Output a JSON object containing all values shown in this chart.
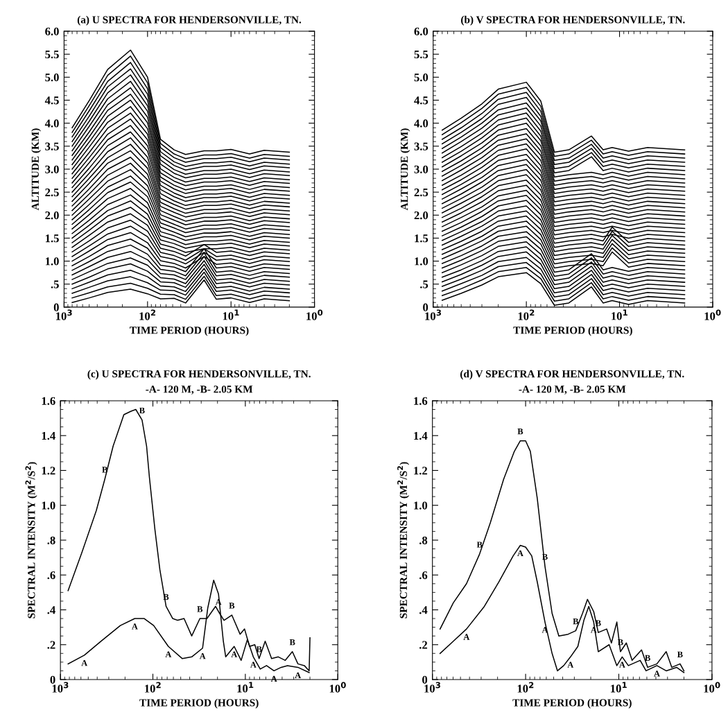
{
  "chart_data": [
    {
      "type": "line",
      "title": "(a) U SPECTRA FOR HENDERSONVILLE, TN.",
      "xlabel": "TIME PERIOD (HOURS)",
      "ylabel": "ALTITUDE (KM)",
      "log": "x",
      "xlim": [
        1000,
        1
      ],
      "ylim": [
        0,
        6.0
      ],
      "xticks": [
        {
          "value": 1000,
          "label": "10$^{3}$"
        },
        {
          "value": 100,
          "label": "10$^{2}$"
        },
        {
          "value": 10,
          "label": "10$^{1}$"
        },
        {
          "value": 1,
          "label": "10$^{0}$"
        }
      ],
      "yticks": [
        0,
        {
          "value": 0.5,
          "label": ".5"
        },
        {
          "value": 1,
          "label": "1.0"
        },
        1.5,
        {
          "value": 2,
          "label": "2.0"
        },
        2.5,
        {
          "value": 3,
          "label": "3.0"
        },
        3.5,
        {
          "value": 4,
          "label": "4.0"
        },
        4.5,
        {
          "value": 5,
          "label": "5.0"
        },
        5.5,
        {
          "value": 6,
          "label": "6.0"
        }
      ],
      "x": [
        800,
        500,
        300,
        160,
        100,
        70,
        48,
        35,
        21,
        15,
        10,
        6,
        4,
        2
      ],
      "series": [
        {
          "color": "#000000",
          "values": [
            0.1,
            0.2,
            0.32,
            0.39,
            0.29,
            0.18,
            0.19,
            0.09,
            0.59,
            0.17,
            0.2,
            0.1,
            0.18,
            0.14
          ]
        },
        {
          "color": "#000000",
          "values": [
            0.2,
            0.31,
            0.44,
            0.52,
            0.41,
            0.28,
            0.27,
            0.17,
            0.67,
            0.25,
            0.28,
            0.18,
            0.26,
            0.22
          ]
        },
        {
          "color": "#000000",
          "values": [
            0.3,
            0.43,
            0.57,
            0.66,
            0.53,
            0.37,
            0.36,
            0.26,
            0.76,
            0.34,
            0.37,
            0.27,
            0.35,
            0.31
          ]
        },
        {
          "color": "#000000",
          "values": [
            0.4,
            0.54,
            0.7,
            0.8,
            0.66,
            0.46,
            0.44,
            0.34,
            0.84,
            0.42,
            0.45,
            0.35,
            0.43,
            0.39
          ]
        },
        {
          "color": "#000000",
          "values": [
            0.5,
            0.65,
            0.83,
            0.94,
            0.78,
            0.55,
            0.53,
            0.43,
            0.93,
            0.51,
            0.54,
            0.44,
            0.52,
            0.48
          ]
        },
        {
          "color": "#000000",
          "values": [
            0.6,
            0.77,
            0.95,
            1.07,
            0.91,
            0.64,
            0.61,
            0.51,
            1.01,
            0.59,
            0.62,
            0.52,
            0.6,
            0.56
          ]
        },
        {
          "color": "#000000",
          "values": [
            0.7,
            0.88,
            1.08,
            1.21,
            1.03,
            0.73,
            0.7,
            0.6,
            1.1,
            0.68,
            0.71,
            0.61,
            0.69,
            0.65
          ]
        },
        {
          "color": "#000000",
          "values": [
            0.8,
            0.99,
            1.21,
            1.35,
            1.15,
            0.82,
            0.78,
            0.68,
            1.18,
            0.76,
            0.79,
            0.69,
            0.77,
            0.73
          ]
        },
        {
          "color": "#000000",
          "values": [
            0.9,
            1.1,
            1.34,
            1.48,
            1.28,
            0.91,
            0.87,
            0.77,
            1.27,
            0.85,
            0.88,
            0.78,
            0.86,
            0.82
          ]
        },
        {
          "color": "#000000",
          "values": [
            1.0,
            1.22,
            1.47,
            1.62,
            1.4,
            1.01,
            0.95,
            0.85,
            1.1,
            0.93,
            0.96,
            0.86,
            0.94,
            0.9
          ]
        },
        {
          "color": "#000000",
          "values": [
            1.1,
            1.33,
            1.59,
            1.76,
            1.53,
            1.1,
            1.04,
            0.94,
            1.19,
            1.02,
            1.05,
            0.95,
            1.03,
            0.99
          ]
        },
        {
          "color": "#000000",
          "values": [
            1.2,
            1.44,
            1.72,
            1.89,
            1.65,
            1.19,
            1.12,
            1.02,
            1.27,
            1.1,
            1.13,
            1.03,
            1.11,
            1.07
          ]
        },
        {
          "color": "#000000",
          "values": [
            1.3,
            1.56,
            1.85,
            2.03,
            1.78,
            1.28,
            1.21,
            1.11,
            1.36,
            1.19,
            1.22,
            1.12,
            1.2,
            1.16
          ]
        },
        {
          "color": "#000000",
          "values": [
            1.4,
            1.67,
            1.98,
            2.17,
            1.9,
            1.37,
            1.29,
            1.19,
            1.27,
            1.27,
            1.3,
            1.2,
            1.28,
            1.24
          ]
        },
        {
          "color": "#000000",
          "values": [
            1.5,
            1.78,
            2.1,
            2.31,
            2.02,
            1.46,
            1.38,
            1.28,
            1.36,
            1.36,
            1.39,
            1.29,
            1.37,
            1.33
          ]
        },
        {
          "color": "#000000",
          "values": [
            1.6,
            1.89,
            2.23,
            2.44,
            2.15,
            1.55,
            1.46,
            1.36,
            1.44,
            1.44,
            1.47,
            1.37,
            1.45,
            1.41
          ]
        },
        {
          "color": "#000000",
          "values": [
            1.7,
            2.01,
            2.36,
            2.58,
            2.27,
            1.64,
            1.55,
            1.45,
            1.53,
            1.53,
            1.56,
            1.46,
            1.54,
            1.5
          ]
        },
        {
          "color": "#000000",
          "values": [
            1.8,
            2.12,
            2.49,
            2.72,
            2.4,
            1.74,
            1.63,
            1.53,
            1.61,
            1.61,
            1.64,
            1.54,
            1.62,
            1.58
          ]
        },
        {
          "color": "#000000",
          "values": [
            1.9,
            2.23,
            2.61,
            2.85,
            2.52,
            1.83,
            1.72,
            1.62,
            1.7,
            1.7,
            1.73,
            1.63,
            1.71,
            1.67
          ]
        },
        {
          "color": "#000000",
          "values": [
            2.0,
            2.35,
            2.74,
            2.99,
            2.64,
            1.92,
            1.8,
            1.7,
            1.78,
            1.78,
            1.81,
            1.71,
            1.79,
            1.75
          ]
        },
        {
          "color": "#000000",
          "values": [
            2.1,
            2.46,
            2.87,
            3.13,
            2.77,
            2.01,
            1.89,
            1.79,
            1.87,
            1.87,
            1.9,
            1.8,
            1.88,
            1.84
          ]
        },
        {
          "color": "#000000",
          "values": [
            2.2,
            2.57,
            3.0,
            3.26,
            2.89,
            2.1,
            1.97,
            1.87,
            1.95,
            1.95,
            1.98,
            1.88,
            1.96,
            1.92
          ]
        },
        {
          "color": "#000000",
          "values": [
            2.3,
            2.69,
            3.13,
            3.4,
            3.02,
            2.19,
            2.06,
            1.96,
            2.04,
            2.04,
            2.07,
            1.97,
            2.05,
            2.01
          ]
        },
        {
          "color": "#000000",
          "values": [
            2.4,
            2.8,
            3.25,
            3.54,
            3.14,
            2.28,
            2.14,
            2.04,
            2.12,
            2.12,
            2.15,
            2.05,
            2.13,
            2.09
          ]
        },
        {
          "color": "#000000",
          "values": [
            2.5,
            2.91,
            3.38,
            3.68,
            3.26,
            2.37,
            2.23,
            2.13,
            2.21,
            2.21,
            2.24,
            2.14,
            2.22,
            2.18
          ]
        },
        {
          "color": "#000000",
          "values": [
            2.6,
            3.02,
            3.51,
            3.81,
            3.39,
            2.47,
            2.31,
            2.21,
            2.29,
            2.29,
            2.32,
            2.22,
            2.3,
            2.26
          ]
        },
        {
          "color": "#000000",
          "values": [
            2.7,
            3.14,
            3.64,
            3.95,
            3.51,
            2.56,
            2.4,
            2.3,
            2.38,
            2.38,
            2.41,
            2.31,
            2.39,
            2.35
          ]
        },
        {
          "color": "#000000",
          "values": [
            2.8,
            3.25,
            3.76,
            4.09,
            3.64,
            2.65,
            2.48,
            2.38,
            2.46,
            2.46,
            2.49,
            2.39,
            2.47,
            2.43
          ]
        },
        {
          "color": "#000000",
          "values": [
            2.9,
            3.36,
            3.89,
            4.22,
            3.76,
            2.74,
            2.57,
            2.47,
            2.55,
            2.55,
            2.58,
            2.48,
            2.56,
            2.52
          ]
        },
        {
          "color": "#000000",
          "values": [
            3.0,
            3.48,
            4.02,
            4.36,
            3.88,
            2.83,
            2.65,
            2.55,
            2.63,
            2.63,
            2.66,
            2.56,
            2.64,
            2.6
          ]
        },
        {
          "color": "#000000",
          "values": [
            3.1,
            3.59,
            4.15,
            4.5,
            4.01,
            2.92,
            2.74,
            2.64,
            2.72,
            2.72,
            2.75,
            2.65,
            2.73,
            2.69
          ]
        },
        {
          "color": "#000000",
          "values": [
            3.2,
            3.7,
            4.28,
            4.63,
            4.13,
            3.01,
            2.82,
            2.72,
            2.8,
            2.8,
            2.83,
            2.73,
            2.81,
            2.77
          ]
        },
        {
          "color": "#000000",
          "values": [
            3.3,
            3.81,
            4.4,
            4.77,
            4.26,
            3.11,
            2.91,
            2.81,
            2.89,
            2.89,
            2.92,
            2.82,
            2.9,
            2.86
          ]
        },
        {
          "color": "#000000",
          "values": [
            3.4,
            3.93,
            4.53,
            4.91,
            4.38,
            3.2,
            2.99,
            2.89,
            2.97,
            2.97,
            3.0,
            2.9,
            2.98,
            2.94
          ]
        },
        {
          "color": "#000000",
          "values": [
            3.5,
            4.04,
            4.66,
            5.05,
            4.5,
            3.29,
            3.08,
            2.98,
            3.06,
            3.06,
            3.09,
            2.99,
            3.07,
            3.03
          ]
        },
        {
          "color": "#000000",
          "values": [
            3.6,
            4.15,
            4.79,
            5.18,
            4.63,
            3.38,
            3.16,
            3.06,
            3.14,
            3.14,
            3.17,
            3.07,
            3.15,
            3.11
          ]
        },
        {
          "color": "#000000",
          "values": [
            3.7,
            4.27,
            4.91,
            5.32,
            4.75,
            3.47,
            3.25,
            3.15,
            3.23,
            3.23,
            3.26,
            3.16,
            3.24,
            3.2
          ]
        },
        {
          "color": "#000000",
          "values": [
            3.8,
            4.38,
            5.04,
            5.46,
            4.88,
            3.56,
            3.33,
            3.23,
            3.31,
            3.31,
            3.34,
            3.24,
            3.32,
            3.28
          ]
        },
        {
          "color": "#000000",
          "values": [
            3.9,
            4.49,
            5.17,
            5.59,
            5.0,
            3.65,
            3.42,
            3.32,
            3.4,
            3.4,
            3.43,
            3.33,
            3.41,
            3.37
          ]
        }
      ]
    },
    {
      "type": "line",
      "title": "(b) V SPECTRA FOR HENDERSONVILLE, TN.",
      "xlabel": "TIME PERIOD (HOURS)",
      "ylabel": "ALTITUDE (KM)",
      "log": "x",
      "xlim": [
        1000,
        1
      ],
      "ylim": [
        0,
        6.0
      ],
      "xticks": [
        {
          "value": 1000,
          "label": "10$^{3}$"
        },
        {
          "value": 100,
          "label": "10$^{2}$"
        },
        {
          "value": 10,
          "label": "10$^{1}$"
        },
        {
          "value": 1,
          "label": "10$^{0}$"
        }
      ],
      "yticks": [
        0,
        {
          "value": 0.5,
          "label": ".5"
        },
        {
          "value": 1,
          "label": "1.0"
        },
        1.5,
        {
          "value": 2,
          "label": "2.0"
        },
        2.5,
        {
          "value": 3,
          "label": "3.0"
        },
        3.5,
        {
          "value": 4,
          "label": "4.0"
        },
        4.5,
        {
          "value": 5,
          "label": "5.0"
        },
        5.5,
        {
          "value": 6,
          "label": "6.0"
        }
      ],
      "x": [
        800,
        500,
        300,
        200,
        100,
        70,
        50,
        35,
        20,
        15,
        12,
        8,
        5,
        2
      ],
      "series": [
        {
          "color": "#000000",
          "values": [
            0.15,
            0.3,
            0.48,
            0.66,
            0.75,
            0.51,
            0.04,
            0.09,
            0.44,
            0.09,
            0.14,
            0.06,
            0.14,
            0.09
          ]
        },
        {
          "color": "#000000",
          "values": [
            0.25,
            0.4,
            0.59,
            0.77,
            0.86,
            0.62,
            0.13,
            0.18,
            0.53,
            0.18,
            0.23,
            0.15,
            0.23,
            0.18
          ]
        },
        {
          "color": "#000000",
          "values": [
            0.35,
            0.51,
            0.69,
            0.88,
            0.97,
            0.72,
            0.22,
            0.27,
            0.62,
            0.27,
            0.32,
            0.24,
            0.32,
            0.27
          ]
        },
        {
          "color": "#000000",
          "values": [
            0.45,
            0.61,
            0.8,
            0.99,
            1.08,
            0.83,
            0.31,
            0.36,
            0.71,
            0.36,
            0.41,
            0.33,
            0.41,
            0.36
          ]
        },
        {
          "color": "#000000",
          "values": [
            0.55,
            0.71,
            0.91,
            1.1,
            1.2,
            0.94,
            0.4,
            0.45,
            0.8,
            0.45,
            0.5,
            0.42,
            0.5,
            0.45
          ]
        },
        {
          "color": "#000000",
          "values": [
            0.65,
            0.81,
            1.01,
            1.21,
            1.31,
            1.04,
            0.49,
            0.54,
            0.89,
            0.54,
            0.59,
            0.51,
            0.59,
            0.54
          ]
        },
        {
          "color": "#000000",
          "values": [
            0.75,
            0.92,
            1.12,
            1.32,
            1.42,
            1.15,
            0.58,
            0.63,
            0.98,
            0.63,
            0.68,
            0.6,
            0.68,
            0.63
          ]
        },
        {
          "color": "#000000",
          "values": [
            0.85,
            1.02,
            1.23,
            1.43,
            1.53,
            1.26,
            0.67,
            0.72,
            1.07,
            0.72,
            0.77,
            0.69,
            0.77,
            0.72
          ]
        },
        {
          "color": "#000000",
          "values": [
            0.95,
            1.12,
            1.33,
            1.54,
            1.64,
            1.37,
            0.76,
            0.81,
            1.16,
            0.81,
            0.86,
            0.78,
            0.86,
            0.81
          ]
        },
        {
          "color": "#000000",
          "values": [
            1.05,
            1.23,
            1.44,
            1.65,
            1.76,
            1.47,
            0.85,
            0.9,
            0.95,
            0.9,
            1.2,
            0.87,
            0.95,
            0.9
          ]
        },
        {
          "color": "#000000",
          "values": [
            1.15,
            1.33,
            1.54,
            1.76,
            1.87,
            1.58,
            0.94,
            0.99,
            1.04,
            0.99,
            1.29,
            0.96,
            1.04,
            0.99
          ]
        },
        {
          "color": "#000000",
          "values": [
            1.25,
            1.43,
            1.65,
            1.87,
            1.98,
            1.69,
            1.03,
            1.08,
            1.13,
            1.08,
            1.38,
            1.05,
            1.13,
            1.08
          ]
        },
        {
          "color": "#000000",
          "values": [
            1.35,
            1.54,
            1.76,
            1.98,
            2.09,
            1.8,
            1.12,
            1.17,
            1.22,
            1.17,
            1.47,
            1.14,
            1.22,
            1.17
          ]
        },
        {
          "color": "#000000",
          "values": [
            1.45,
            1.64,
            1.86,
            2.09,
            2.2,
            1.9,
            1.21,
            1.26,
            1.31,
            1.26,
            1.56,
            1.23,
            1.31,
            1.26
          ]
        },
        {
          "color": "#000000",
          "values": [
            1.55,
            1.74,
            1.97,
            2.2,
            2.32,
            2.01,
            1.3,
            1.35,
            1.4,
            1.35,
            1.65,
            1.32,
            1.4,
            1.35
          ]
        },
        {
          "color": "#000000",
          "values": [
            1.65,
            1.84,
            2.08,
            2.31,
            2.43,
            2.12,
            1.39,
            1.44,
            1.49,
            1.44,
            1.74,
            1.41,
            1.49,
            1.44
          ]
        },
        {
          "color": "#000000",
          "values": [
            1.75,
            1.95,
            2.18,
            2.42,
            2.54,
            2.22,
            1.48,
            1.53,
            1.58,
            1.53,
            1.58,
            1.5,
            1.58,
            1.53
          ]
        },
        {
          "color": "#000000",
          "values": [
            1.85,
            2.05,
            2.29,
            2.53,
            2.65,
            2.33,
            1.57,
            1.62,
            1.67,
            1.62,
            1.67,
            1.59,
            1.67,
            1.62
          ]
        },
        {
          "color": "#000000",
          "values": [
            1.95,
            2.15,
            2.4,
            2.64,
            2.76,
            2.44,
            1.66,
            1.71,
            1.76,
            1.71,
            1.76,
            1.68,
            1.76,
            1.71
          ]
        },
        {
          "color": "#000000",
          "values": [
            2.05,
            2.26,
            2.5,
            2.75,
            2.88,
            2.55,
            1.75,
            1.8,
            1.85,
            1.8,
            1.85,
            1.77,
            1.85,
            1.8
          ]
        },
        {
          "color": "#000000",
          "values": [
            2.15,
            2.36,
            2.61,
            2.86,
            2.99,
            2.65,
            1.84,
            1.89,
            1.94,
            1.89,
            1.94,
            1.86,
            1.94,
            1.89
          ]
        },
        {
          "color": "#000000",
          "values": [
            2.25,
            2.46,
            2.72,
            2.97,
            3.1,
            2.76,
            1.93,
            1.98,
            2.03,
            1.98,
            2.03,
            1.95,
            2.03,
            1.98
          ]
        },
        {
          "color": "#000000",
          "values": [
            2.35,
            2.57,
            2.82,
            3.08,
            3.21,
            2.87,
            2.02,
            2.07,
            2.12,
            2.07,
            2.12,
            2.04,
            2.12,
            2.07
          ]
        },
        {
          "color": "#000000",
          "values": [
            2.45,
            2.67,
            2.93,
            3.19,
            3.32,
            2.97,
            2.11,
            2.16,
            2.21,
            2.16,
            2.21,
            2.13,
            2.21,
            2.16
          ]
        },
        {
          "color": "#000000",
          "values": [
            2.55,
            2.77,
            3.04,
            3.3,
            3.44,
            3.08,
            2.2,
            2.25,
            2.3,
            2.25,
            2.3,
            2.22,
            2.3,
            2.25
          ]
        },
        {
          "color": "#000000",
          "values": [
            2.65,
            2.87,
            3.14,
            3.41,
            3.55,
            3.19,
            2.29,
            2.34,
            2.39,
            2.34,
            2.39,
            2.31,
            2.39,
            2.34
          ]
        },
        {
          "color": "#000000",
          "values": [
            2.75,
            2.98,
            3.25,
            3.52,
            3.66,
            3.3,
            2.38,
            2.43,
            2.48,
            2.43,
            2.48,
            2.4,
            2.48,
            2.43
          ]
        },
        {
          "color": "#000000",
          "values": [
            2.85,
            3.08,
            3.36,
            3.63,
            3.77,
            3.4,
            2.47,
            2.52,
            2.57,
            2.52,
            2.57,
            2.49,
            2.57,
            2.52
          ]
        },
        {
          "color": "#000000",
          "values": [
            2.95,
            3.18,
            3.46,
            3.74,
            3.88,
            3.51,
            2.56,
            2.61,
            2.66,
            2.61,
            2.66,
            2.58,
            2.66,
            2.61
          ]
        },
        {
          "color": "#000000",
          "values": [
            3.05,
            3.29,
            3.57,
            3.85,
            4.0,
            3.62,
            2.65,
            2.7,
            2.75,
            2.7,
            2.75,
            2.67,
            2.75,
            2.7
          ]
        },
        {
          "color": "#000000",
          "values": [
            3.15,
            3.39,
            3.68,
            3.96,
            4.11,
            3.72,
            2.74,
            2.79,
            2.84,
            2.79,
            2.84,
            2.76,
            2.84,
            2.79
          ]
        },
        {
          "color": "#000000",
          "values": [
            3.25,
            3.49,
            3.78,
            4.07,
            4.22,
            3.83,
            2.83,
            2.88,
            2.93,
            2.88,
            2.93,
            2.85,
            2.93,
            2.88
          ]
        },
        {
          "color": "#000000",
          "values": [
            3.35,
            3.6,
            3.89,
            4.18,
            4.33,
            3.94,
            2.92,
            2.97,
            3.27,
            2.97,
            3.02,
            2.94,
            3.02,
            2.97
          ]
        },
        {
          "color": "#000000",
          "values": [
            3.45,
            3.7,
            4.0,
            4.29,
            4.44,
            4.05,
            3.01,
            3.06,
            3.36,
            3.06,
            3.11,
            3.03,
            3.11,
            3.06
          ]
        },
        {
          "color": "#000000",
          "values": [
            3.55,
            3.8,
            4.1,
            4.41,
            4.56,
            4.15,
            3.1,
            3.15,
            3.45,
            3.15,
            3.2,
            3.12,
            3.2,
            3.15
          ]
        },
        {
          "color": "#000000",
          "values": [
            3.65,
            3.9,
            4.21,
            4.52,
            4.67,
            4.26,
            3.19,
            3.24,
            3.54,
            3.24,
            3.29,
            3.21,
            3.29,
            3.24
          ]
        },
        {
          "color": "#000000",
          "values": [
            3.75,
            4.01,
            4.32,
            4.63,
            4.78,
            4.37,
            3.28,
            3.33,
            3.63,
            3.33,
            3.38,
            3.3,
            3.38,
            3.33
          ]
        },
        {
          "color": "#000000",
          "values": [
            3.85,
            4.11,
            4.42,
            4.74,
            4.89,
            4.48,
            3.37,
            3.42,
            3.72,
            3.42,
            3.47,
            3.39,
            3.47,
            3.42
          ]
        }
      ]
    },
    {
      "type": "line",
      "title": "(c) U SPECTRA FOR HENDERSONVILLE, TN.",
      "subtitle": "-A- 120 M, -B- 2.05 KM",
      "xlabel": "TIME PERIOD (HOURS)",
      "ylabel": "SPECTRAL INTENSITY (M$^{2}$/S$^{2}$)",
      "log": "x",
      "xlim": [
        1000,
        1
      ],
      "ylim": [
        0,
        1.6
      ],
      "xticks": [
        {
          "value": 1000,
          "label": "10$^{3}$"
        },
        {
          "value": 100,
          "label": "10$^{2}$"
        },
        {
          "value": 10,
          "label": "10$^{1}$"
        },
        {
          "value": 1,
          "label": "10$^{0}$"
        }
      ],
      "yticks": [
        0,
        {
          "value": 0.2,
          "label": ".2"
        },
        {
          "value": 0.4,
          "label": ".4"
        },
        {
          "value": 0.6,
          "label": ".6"
        },
        {
          "value": 0.8,
          "label": ".8"
        },
        {
          "value": 1,
          "label": "1.0"
        },
        1.2,
        1.4,
        1.6
      ],
      "series": [
        {
          "name": "B",
          "color": "#000000",
          "x": [
            826,
            585,
            409,
            331,
            269,
            206,
            172,
            153,
            131,
            117,
            109,
            95,
            84,
            72,
            61,
            54,
            46,
            38,
            31,
            26,
            21,
            19,
            17,
            14,
            11.4,
            10.2,
            9,
            7.9,
            7.1,
            6.1,
            5.2,
            4.4,
            3.7,
            3.1,
            2.7,
            2.3,
            2.04,
            2.0
          ],
          "values": [
            0.51,
            0.73,
            0.97,
            1.15,
            1.34,
            1.52,
            1.54,
            1.55,
            1.49,
            1.34,
            1.16,
            0.86,
            0.63,
            0.42,
            0.35,
            0.34,
            0.35,
            0.25,
            0.35,
            0.35,
            0.42,
            0.38,
            0.34,
            0.37,
            0.26,
            0.29,
            0.19,
            0.2,
            0.12,
            0.22,
            0.12,
            0.13,
            0.11,
            0.16,
            0.09,
            0.08,
            0.05,
            0.24
          ]
        },
        {
          "name": "A",
          "color": "#000000",
          "x": [
            826,
            551,
            363,
            225,
            157,
            124,
            98,
            68,
            48,
            38,
            29,
            25.5,
            22,
            19.5,
            17.3,
            16.3,
            13.2,
            11.1,
            9.5,
            8.2,
            6.9,
            5.9,
            4.9,
            4.1,
            3.5,
            2.7,
            2.04
          ],
          "values": [
            0.09,
            0.14,
            0.22,
            0.31,
            0.35,
            0.35,
            0.31,
            0.19,
            0.12,
            0.13,
            0.18,
            0.41,
            0.57,
            0.49,
            0.22,
            0.13,
            0.19,
            0.11,
            0.23,
            0.13,
            0.06,
            0.08,
            0.05,
            0.07,
            0.08,
            0.07,
            0.04
          ]
        }
      ]
    },
    {
      "type": "line",
      "title": "(d) V SPECTRA FOR HENDERSONVILLE, TN.",
      "subtitle": "-A- 120 M, -B- 2.05 KM",
      "xlabel": "TIME PERIOD (HOURS)",
      "ylabel": "SPECTRAL INTENSITY (M$^{2}$/S$^{2}$)",
      "log": "x",
      "xlim": [
        1000,
        1
      ],
      "ylim": [
        0,
        1.6
      ],
      "xticks": [
        {
          "value": 1000,
          "label": "10$^{3}$"
        },
        {
          "value": 100,
          "label": "10$^{2}$"
        },
        {
          "value": 10,
          "label": "10$^{1}$"
        },
        {
          "value": 1,
          "label": "10$^{0}$"
        }
      ],
      "yticks": [
        0,
        {
          "value": 0.2,
          "label": ".2"
        },
        {
          "value": 0.4,
          "label": ".4"
        },
        {
          "value": 0.6,
          "label": ".6"
        },
        {
          "value": 0.8,
          "label": ".8"
        },
        {
          "value": 1,
          "label": "1.0"
        },
        1.2,
        1.4,
        1.6
      ],
      "series": [
        {
          "name": "B",
          "color": "#000000",
          "x": [
            828,
            597,
            431,
            312,
            239,
            172,
            132,
            114,
            100,
            89,
            75,
            62,
            52,
            44,
            35,
            29,
            24.5,
            21.7,
            18.6,
            16.6,
            13.5,
            12,
            10.5,
            9.6,
            8.3,
            7.2,
            5.7,
            4.9,
            3.9,
            3.1,
            2.7,
            2.2,
            2.0
          ],
          "values": [
            0.29,
            0.44,
            0.55,
            0.72,
            0.9,
            1.15,
            1.31,
            1.37,
            1.37,
            1.31,
            1.04,
            0.65,
            0.38,
            0.25,
            0.26,
            0.28,
            0.38,
            0.46,
            0.39,
            0.27,
            0.29,
            0.21,
            0.33,
            0.16,
            0.21,
            0.11,
            0.17,
            0.07,
            0.09,
            0.16,
            0.07,
            0.09,
            0.05
          ]
        },
        {
          "name": "A",
          "color": "#000000",
          "x": [
            828,
            597,
            431,
            277,
            194,
            136,
            114,
            100,
            86,
            75,
            62,
            52,
            45.5,
            39,
            33,
            27.5,
            23.7,
            21,
            18.6,
            16.6,
            12.7,
            10.5,
            9.2,
            7.9,
            5.9,
            5.1,
            3.9,
            3.1,
            2.4,
            2.0
          ],
          "values": [
            0.15,
            0.22,
            0.29,
            0.42,
            0.56,
            0.71,
            0.77,
            0.76,
            0.71,
            0.56,
            0.33,
            0.15,
            0.05,
            0.08,
            0.13,
            0.19,
            0.34,
            0.42,
            0.33,
            0.16,
            0.2,
            0.08,
            0.13,
            0.08,
            0.11,
            0.05,
            0.08,
            0.05,
            0.07,
            0.04
          ]
        }
      ]
    }
  ]
}
